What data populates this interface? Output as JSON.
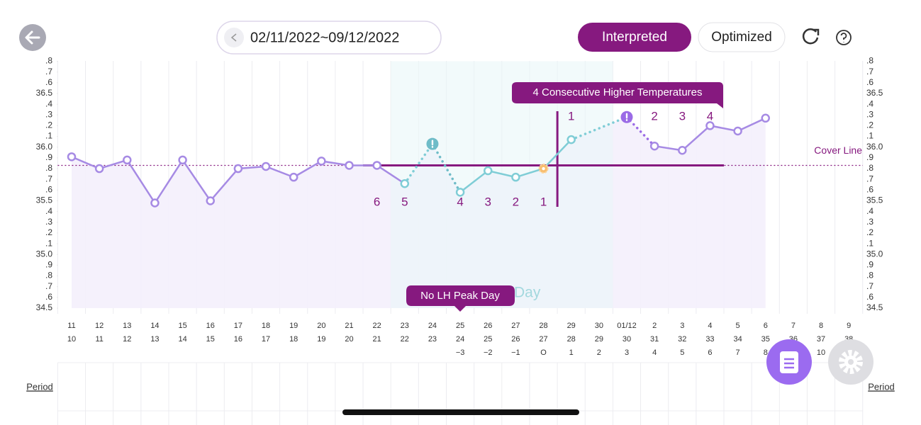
{
  "header": {
    "date_range": "02/11/2022~09/12/2022",
    "tabs": [
      "Interpreted",
      "Optimized"
    ]
  },
  "period_label": "Period",
  "chart_data": {
    "type": "line",
    "categories": [
      "11",
      "12",
      "13",
      "14",
      "15",
      "16",
      "17",
      "18",
      "19",
      "20",
      "21",
      "22",
      "23",
      "24",
      "25",
      "26",
      "27",
      "28",
      "29",
      "30",
      "01/12",
      "2",
      "3",
      "4",
      "5",
      "6",
      "7",
      "8",
      "9"
    ],
    "cycle_days": [
      10,
      11,
      12,
      13,
      14,
      15,
      16,
      17,
      18,
      19,
      20,
      21,
      22,
      23,
      24,
      25,
      26,
      27,
      28,
      29,
      30,
      31,
      32,
      33,
      34,
      35,
      36,
      37,
      38
    ],
    "cycle_offsets": [
      null,
      null,
      null,
      null,
      null,
      null,
      null,
      null,
      null,
      null,
      null,
      null,
      null,
      null,
      "−3",
      "−2",
      "−1",
      "O",
      "1",
      "2",
      "3",
      "4",
      "5",
      "6",
      "7",
      "8",
      null,
      "10",
      null
    ],
    "values": [
      35.91,
      35.8,
      35.88,
      35.48,
      35.88,
      35.5,
      35.8,
      35.82,
      35.72,
      35.87,
      35.83,
      35.83,
      35.66,
      36.03,
      35.58,
      35.78,
      35.72,
      35.8,
      36.07,
      null,
      36.28,
      36.01,
      35.97,
      36.2,
      36.15,
      36.27,
      null,
      null,
      null
    ],
    "markers": [
      "circle",
      "circle",
      "circle",
      "circle",
      "circle",
      "circle",
      "circle",
      "circle",
      "circle",
      "circle",
      "circle",
      "circle",
      "circle",
      "alert",
      "circle",
      "circle",
      "circle",
      "flower",
      "circle",
      null,
      "alert",
      "circle",
      "circle",
      "circle",
      "circle",
      "circle",
      null,
      null,
      null
    ],
    "point_colors": [
      "#a68ae4",
      "#a68ae4",
      "#a68ae4",
      "#a68ae4",
      "#a68ae4",
      "#a68ae4",
      "#a68ae4",
      "#a68ae4",
      "#a68ae4",
      "#a68ae4",
      "#a68ae4",
      "#a68ae4",
      "#7fcdd6",
      "#6fbcc8",
      "#7fcdd6",
      "#7fcdd6",
      "#7fcdd6",
      "#7fcdd6",
      "#7fcdd6",
      null,
      "#9b6be6",
      "#a68ae4",
      "#a68ae4",
      "#a68ae4",
      "#a68ae4",
      "#a68ae4",
      null,
      null,
      null
    ],
    "low_counts": [
      null,
      null,
      null,
      null,
      null,
      null,
      null,
      null,
      null,
      null,
      null,
      6,
      5,
      null,
      4,
      3,
      2,
      1,
      null,
      null,
      null,
      null,
      null,
      null,
      null,
      null,
      null,
      null,
      null
    ],
    "high_counts": [
      null,
      null,
      null,
      null,
      null,
      null,
      null,
      null,
      null,
      null,
      null,
      null,
      null,
      null,
      null,
      null,
      null,
      null,
      1,
      null,
      null,
      2,
      3,
      4,
      null,
      null,
      null,
      null,
      null
    ],
    "cover_line": {
      "label": "Cover Line",
      "value": 35.83
    },
    "annotations": [
      "4 Consecutive Higher Temperatures",
      "No LH Peak Day",
      "Day"
    ],
    "ylim": [
      34.5,
      36.8
    ],
    "yticks": [
      34.5,
      {
        "value": 34.6,
        "label": ".6"
      },
      {
        "value": 34.7,
        "label": ".7"
      },
      {
        "value": 34.8,
        "label": ".8"
      },
      {
        "value": 34.9,
        "label": ".9"
      },
      {
        "value": 35,
        "label": "35.0"
      },
      {
        "value": 35.1,
        "label": ".1"
      },
      {
        "value": 35.2,
        "label": ".2"
      },
      {
        "value": 35.3,
        "label": ".3"
      },
      {
        "value": 35.4,
        "label": ".4"
      },
      35.5,
      {
        "value": 35.6,
        "label": ".6"
      },
      {
        "value": 35.7,
        "label": ".7"
      },
      {
        "value": 35.8,
        "label": ".8"
      },
      {
        "value": 35.9,
        "label": ".9"
      },
      {
        "value": 36,
        "label": "36.0"
      },
      {
        "value": 36.1,
        "label": ".1"
      },
      {
        "value": 36.2,
        "label": ".2"
      },
      {
        "value": 36.3,
        "label": ".3"
      },
      {
        "value": 36.4,
        "label": ".4"
      },
      36.5,
      {
        "value": 36.6,
        "label": ".6"
      },
      {
        "value": 36.7,
        "label": ".7"
      },
      {
        "value": 36.8,
        "label": ".8"
      }
    ],
    "grid": false
  }
}
